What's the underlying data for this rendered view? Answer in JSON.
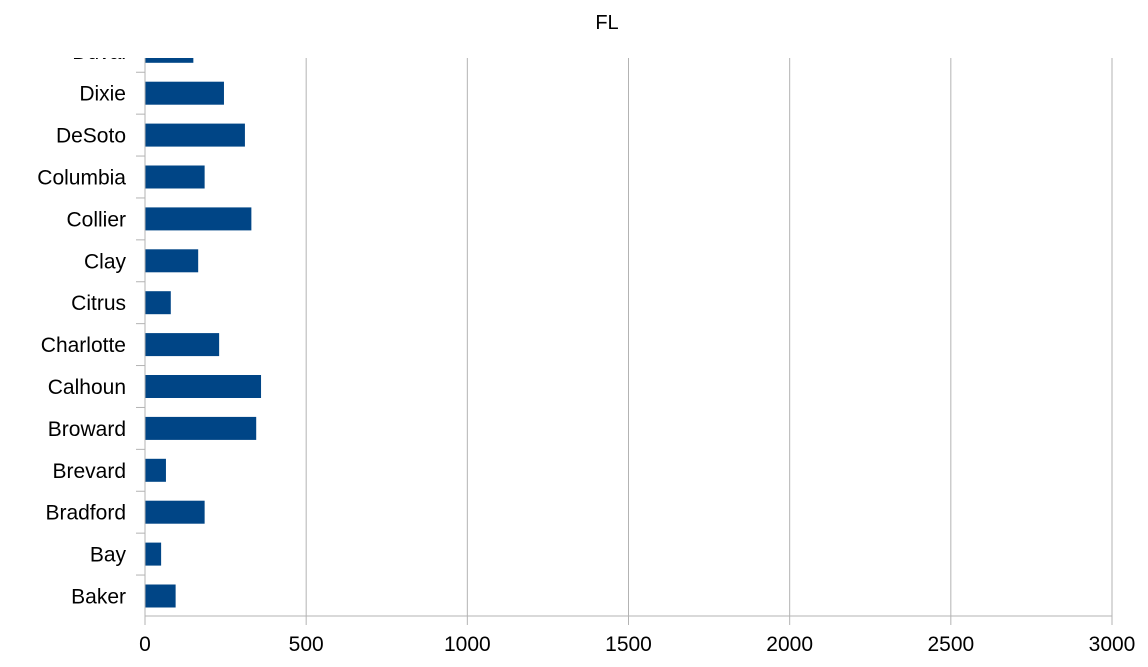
{
  "chart_data": {
    "type": "bar",
    "orientation": "horizontal",
    "title": "FL",
    "xlabel": "",
    "ylabel": "",
    "categories": [
      "Baker",
      "Bay",
      "Bradford",
      "Brevard",
      "Broward",
      "Calhoun",
      "Charlotte",
      "Citrus",
      "Clay",
      "Collier",
      "Columbia",
      "DeSoto",
      "Dixie",
      "Duval"
    ],
    "values": [
      95,
      50,
      185,
      65,
      345,
      360,
      230,
      80,
      165,
      330,
      185,
      310,
      245,
      150
    ],
    "xlim": [
      0,
      3000
    ],
    "xticks": [
      0,
      500,
      1000,
      1500,
      2000,
      2500,
      3000
    ],
    "x_gridlines": true,
    "legend": "none",
    "bar_color": "#004586",
    "grid_color": "#b3b3b3"
  }
}
